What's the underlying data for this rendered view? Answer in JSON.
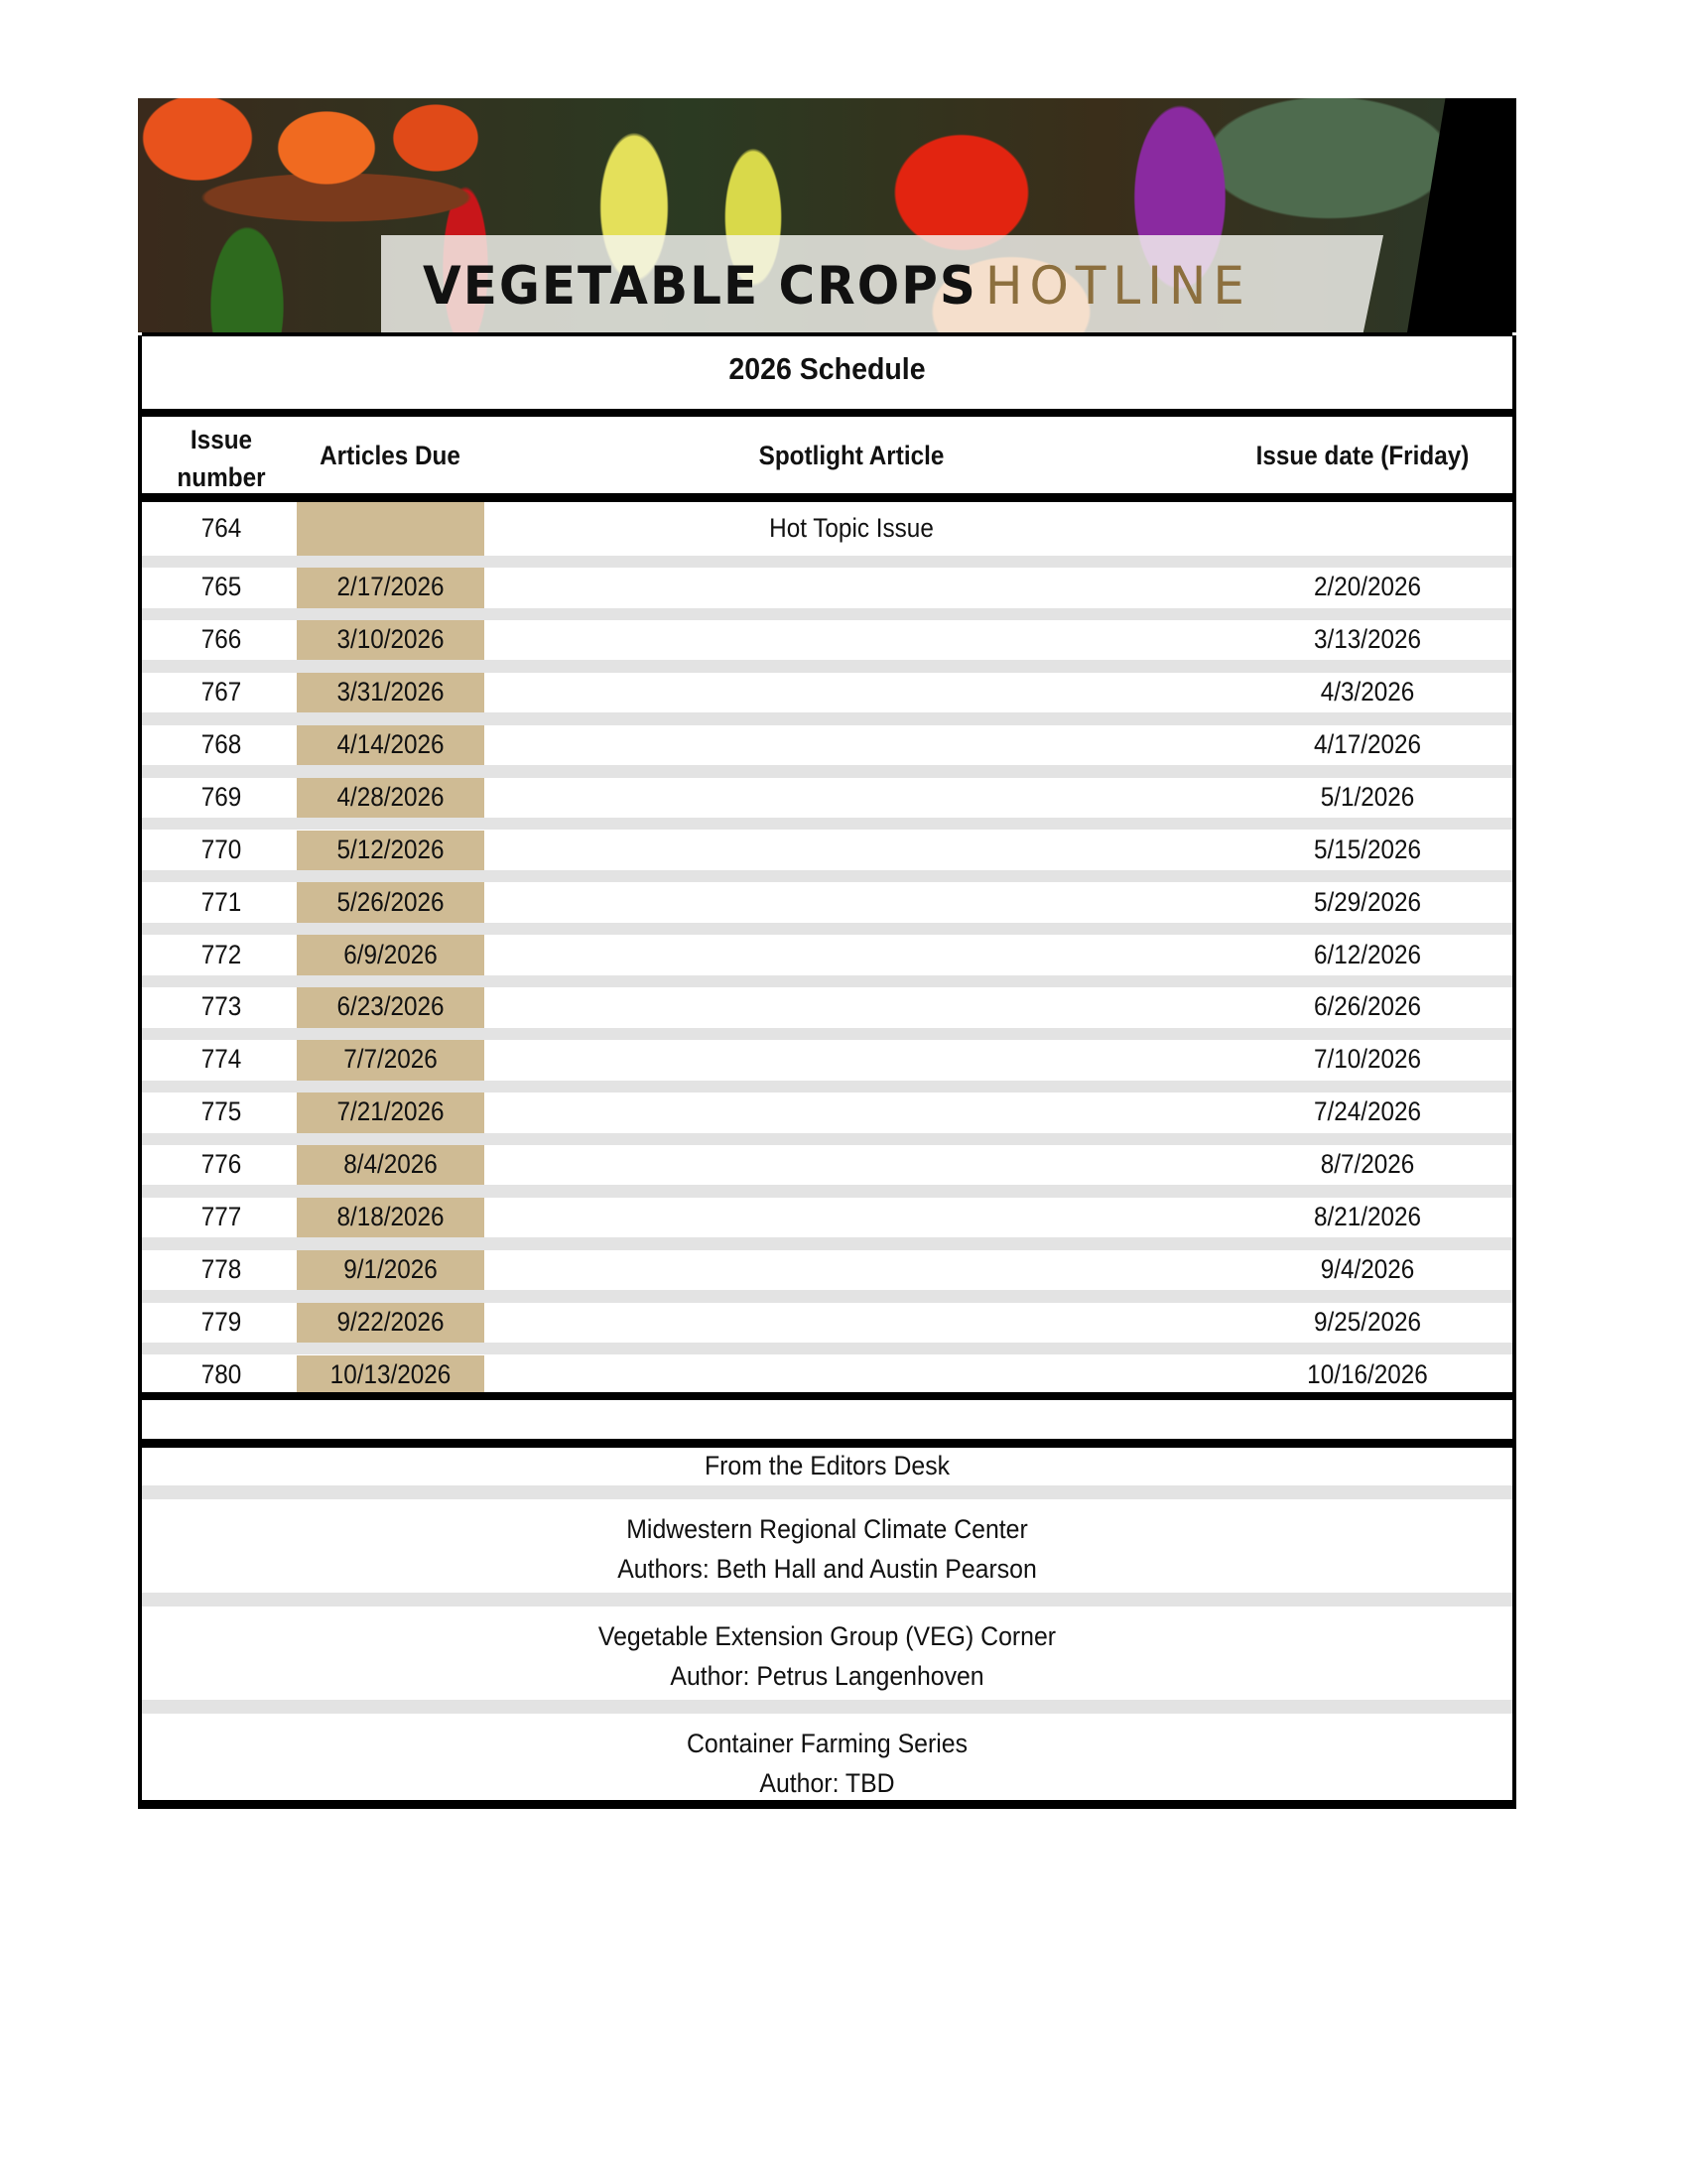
{
  "banner": {
    "title_main": "VEGETABLE CROPS",
    "title_accent": "HOTLINE"
  },
  "schedule": {
    "title": "2026 Schedule",
    "headers": {
      "issue_number_line1": "Issue",
      "issue_number_line2": "number",
      "articles_due": "Articles Due",
      "spotlight": "Spotlight Article",
      "issue_date": "Issue date (Friday)"
    },
    "rows": [
      {
        "issue": "764",
        "due": "",
        "spotlight": "Hot Topic Issue",
        "date": ""
      },
      {
        "issue": "765",
        "due": "2/17/2026",
        "spotlight": "",
        "date": "2/20/2026"
      },
      {
        "issue": "766",
        "due": "3/10/2026",
        "spotlight": "",
        "date": "3/13/2026"
      },
      {
        "issue": "767",
        "due": "3/31/2026",
        "spotlight": "",
        "date": "4/3/2026"
      },
      {
        "issue": "768",
        "due": "4/14/2026",
        "spotlight": "",
        "date": "4/17/2026"
      },
      {
        "issue": "769",
        "due": "4/28/2026",
        "spotlight": "",
        "date": "5/1/2026"
      },
      {
        "issue": "770",
        "due": "5/12/2026",
        "spotlight": "",
        "date": "5/15/2026"
      },
      {
        "issue": "771",
        "due": "5/26/2026",
        "spotlight": "",
        "date": "5/29/2026"
      },
      {
        "issue": "772",
        "due": "6/9/2026",
        "spotlight": "",
        "date": "6/12/2026"
      },
      {
        "issue": "773",
        "due": "6/23/2026",
        "spotlight": "",
        "date": "6/26/2026"
      },
      {
        "issue": "774",
        "due": "7/7/2026",
        "spotlight": "",
        "date": "7/10/2026"
      },
      {
        "issue": "775",
        "due": "7/21/2026",
        "spotlight": "",
        "date": "7/24/2026"
      },
      {
        "issue": "776",
        "due": "8/4/2026",
        "spotlight": "",
        "date": "8/7/2026"
      },
      {
        "issue": "777",
        "due": "8/18/2026",
        "spotlight": "",
        "date": "8/21/2026"
      },
      {
        "issue": "778",
        "due": "9/1/2026",
        "spotlight": "",
        "date": "9/4/2026"
      },
      {
        "issue": "779",
        "due": "9/22/2026",
        "spotlight": "",
        "date": "9/25/2026"
      },
      {
        "issue": "780",
        "due": "10/13/2026",
        "spotlight": "",
        "date": "10/16/2026"
      }
    ],
    "highlight_color": "#cfbb94"
  },
  "columns": {
    "title": "From the Editors Desk",
    "items": [
      {
        "line1": "Midwestern Regional Climate Center",
        "line2": "Authors: Beth Hall and Austin Pearson"
      },
      {
        "line1": "Vegetable Extension Group (VEG) Corner",
        "line2": "Author: Petrus Langenhoven"
      },
      {
        "line1": "Container Farming Series",
        "line2": "Author: TBD"
      }
    ]
  }
}
